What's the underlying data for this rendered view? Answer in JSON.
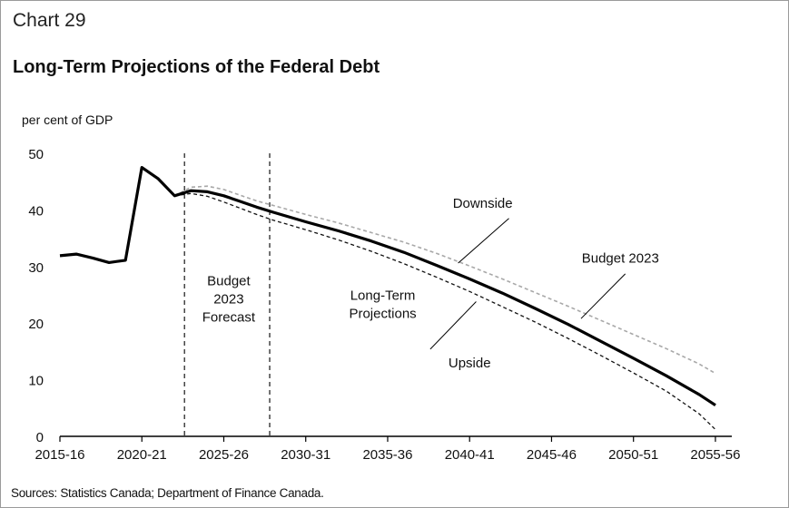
{
  "chart_number": "Chart 29",
  "source": "Sources: Statistics Canada; Department of Finance Canada.",
  "chart_data": {
    "type": "line",
    "title": "Long-Term Projections of the Federal Debt",
    "ylabel": "per cent of GDP",
    "xlabel": "",
    "ylim": [
      0,
      50
    ],
    "y_ticks": [
      0,
      10,
      20,
      30,
      40,
      50
    ],
    "x_range": [
      2015,
      2056
    ],
    "x_ticks": [
      {
        "label": "2015-16",
        "year": 2015
      },
      {
        "label": "2020-21",
        "year": 2020
      },
      {
        "label": "2025-26",
        "year": 2025
      },
      {
        "label": "2030-31",
        "year": 2030
      },
      {
        "label": "2035-36",
        "year": 2035
      },
      {
        "label": "2040-41",
        "year": 2040
      },
      {
        "label": "2045-46",
        "year": 2045
      },
      {
        "label": "2050-51",
        "year": 2050
      },
      {
        "label": "2055-56",
        "year": 2055
      }
    ],
    "grid": false,
    "period_dividers": [
      2022.6,
      2027.8
    ],
    "period_labels": [
      {
        "text": [
          "Budget",
          "2023",
          "Forecast"
        ],
        "year": 2025.3,
        "y": 23.5
      },
      {
        "text": [
          "Long-Term",
          "Projections"
        ],
        "year": 2034.7,
        "y": 22.5
      }
    ],
    "series": [
      {
        "name": "Budget 2023",
        "color": "#000000",
        "style": "solid-thick",
        "x": [
          2015,
          2016,
          2017,
          2018,
          2019,
          2020,
          2021,
          2022,
          2023,
          2024,
          2025,
          2026,
          2027,
          2028,
          2030,
          2032,
          2034,
          2036,
          2038,
          2040,
          2042,
          2044,
          2046,
          2048,
          2050,
          2052,
          2054,
          2055
        ],
        "y": [
          31.9,
          32.2,
          31.5,
          30.7,
          31.1,
          47.5,
          45.5,
          42.5,
          43.4,
          43.2,
          42.5,
          41.5,
          40.5,
          39.6,
          37.9,
          36.3,
          34.5,
          32.5,
          30.2,
          27.8,
          25.3,
          22.6,
          19.8,
          16.8,
          13.8,
          10.7,
          7.4,
          5.5
        ]
      },
      {
        "name": "Downside",
        "color": "#a8a8a8",
        "style": "dashed-light",
        "x": [
          2022,
          2023,
          2024,
          2025,
          2026,
          2027,
          2028,
          2030,
          2032,
          2034,
          2036,
          2038,
          2040,
          2042,
          2044,
          2046,
          2048,
          2050,
          2052,
          2054,
          2055
        ],
        "y": [
          42.5,
          44.0,
          44.2,
          43.6,
          42.6,
          41.6,
          40.8,
          39.2,
          37.7,
          36.0,
          34.3,
          32.3,
          30.1,
          27.8,
          25.4,
          23.0,
          20.5,
          18.0,
          15.5,
          12.8,
          11.1
        ]
      },
      {
        "name": "Upside",
        "color": "#111111",
        "style": "dashed",
        "x": [
          2022,
          2023,
          2024,
          2025,
          2026,
          2027,
          2028,
          2030,
          2032,
          2034,
          2036,
          2038,
          2040,
          2042,
          2044,
          2046,
          2048,
          2050,
          2052,
          2054,
          2055
        ],
        "y": [
          42.5,
          42.9,
          42.4,
          41.4,
          40.3,
          39.2,
          38.2,
          36.5,
          34.7,
          32.7,
          30.5,
          28.1,
          25.6,
          22.9,
          20.2,
          17.3,
          14.3,
          11.2,
          8.0,
          4.0,
          1.2
        ]
      }
    ],
    "annotations": [
      {
        "text": "Downside",
        "year": 2040.8,
        "y": 41.2,
        "pointer_to": {
          "year": 2039.3,
          "y": 30.6
        },
        "pointer_from": {
          "year": 2042.4,
          "y": 38.5
        }
      },
      {
        "text": "Budget 2023",
        "year": 2049.2,
        "y": 31.5,
        "pointer_to": {
          "year": 2046.8,
          "y": 20.8
        },
        "pointer_from": {
          "year": 2049.5,
          "y": 28.7
        }
      },
      {
        "text": "Upside",
        "year": 2040.0,
        "y": 13.0,
        "pointer_to": {
          "year": 2040.4,
          "y": 23.8
        },
        "pointer_from": {
          "year": 2037.6,
          "y": 15.4
        }
      }
    ]
  }
}
